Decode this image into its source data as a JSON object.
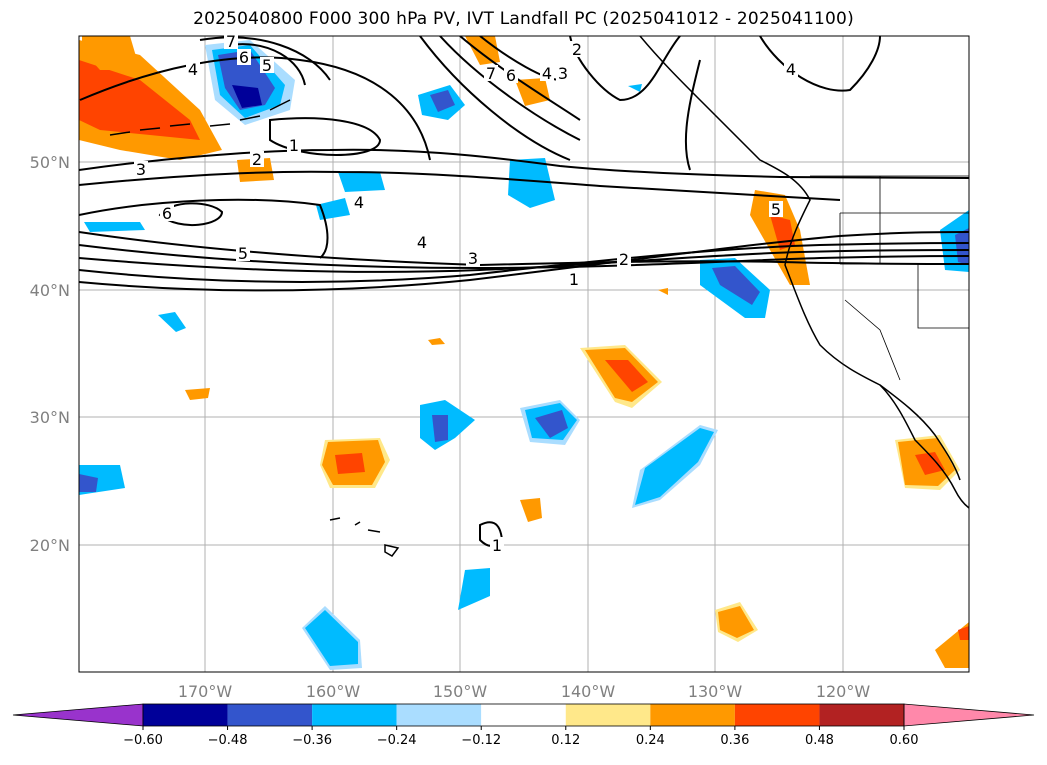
{
  "title": "2025040800 F000 300 hPa PV, IVT Landfall PC (2025041012 - 2025041100)",
  "lat_labels": [
    "50°N",
    "40°N",
    "30°N",
    "20°N"
  ],
  "lon_labels": [
    "170°W",
    "160°W",
    "150°W",
    "140°W",
    "130°W",
    "120°W"
  ],
  "colorbar": {
    "ticks": [
      "−0.60",
      "−0.48",
      "−0.36",
      "−0.24",
      "−0.12",
      "0.12",
      "0.24",
      "0.36",
      "0.48",
      "0.60"
    ],
    "colors": [
      "#9933cc",
      "#000099",
      "#3355cc",
      "#00bbff",
      "#aaddff",
      "#ffffff",
      "#ffe88a",
      "#ff9900",
      "#ff4400",
      "#b22222",
      "#ff88aa"
    ]
  },
  "contour_labels": [
    "1",
    "2",
    "3",
    "4",
    "5",
    "6",
    "7"
  ],
  "map": {
    "lat_range": [
      10,
      60
    ],
    "lon_range": [
      -180,
      -110
    ],
    "contour_color": "#000000",
    "coastline_color": "#000000"
  }
}
